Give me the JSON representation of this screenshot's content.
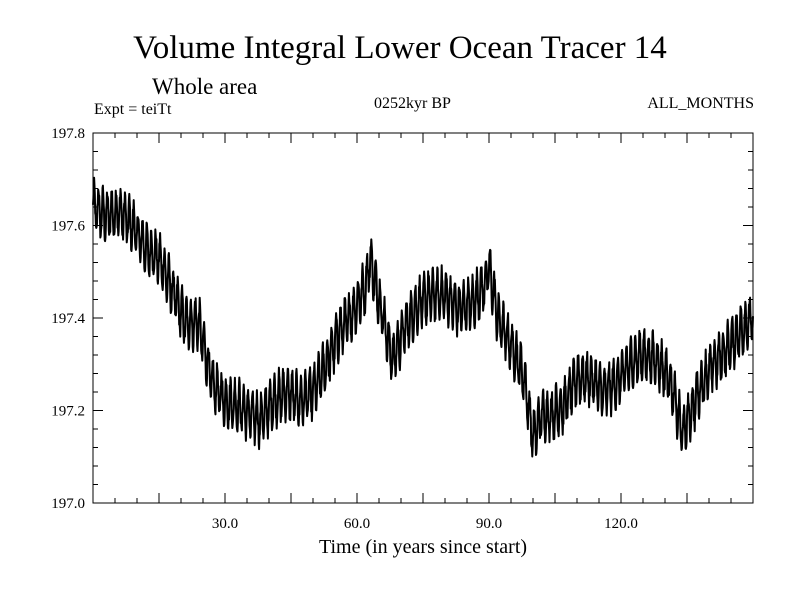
{
  "header": {
    "title": "Volume Integral Lower Ocean Tracer 14",
    "subtitle": "Whole area",
    "expt_label": "Expt = teiTt",
    "center_label": "0252kyr BP",
    "months_label": "ALL_MONTHS"
  },
  "chart_data": {
    "type": "line",
    "title": "Volume Integral Lower Ocean Tracer 14",
    "xlabel": "Time (in years since start)",
    "ylabel": "",
    "xlim": [
      0,
      150
    ],
    "ylim": [
      197.0,
      197.8
    ],
    "x_ticks": [
      30,
      60,
      90,
      120
    ],
    "x_tick_labels": [
      "30.0",
      "60.0",
      "90.0",
      "120.0"
    ],
    "y_ticks": [
      197.0,
      197.2,
      197.4,
      197.6,
      197.8
    ],
    "y_tick_labels": [
      "197.0",
      "197.2",
      "197.4",
      "197.6",
      "197.8"
    ],
    "grid": false,
    "series": [
      {
        "name": "Volume Integral Lower Ocean Tracer 14",
        "seasonal_amplitude": 0.05,
        "x": [
          0,
          3,
          6,
          9,
          12,
          15,
          18,
          21,
          24,
          27,
          30,
          33,
          36,
          38,
          41,
          44,
          47,
          50,
          53,
          56,
          59,
          62,
          63,
          64,
          66,
          68,
          71,
          74,
          77,
          80,
          83,
          86,
          89,
          90,
          92,
          96,
          98,
          100,
          102,
          104,
          107,
          110,
          113,
          116,
          119,
          122,
          125,
          128,
          131,
          133,
          134,
          136,
          138,
          141,
          144,
          147,
          150
        ],
        "values": [
          197.64,
          197.62,
          197.63,
          197.6,
          197.55,
          197.53,
          197.46,
          197.39,
          197.39,
          197.26,
          197.22,
          197.21,
          197.19,
          197.18,
          197.22,
          197.24,
          197.22,
          197.24,
          197.3,
          197.37,
          197.41,
          197.47,
          197.53,
          197.48,
          197.4,
          197.31,
          197.38,
          197.43,
          197.45,
          197.45,
          197.42,
          197.43,
          197.47,
          197.51,
          197.4,
          197.32,
          197.27,
          197.14,
          197.19,
          197.19,
          197.21,
          197.27,
          197.27,
          197.24,
          197.26,
          197.3,
          197.32,
          197.31,
          197.27,
          197.19,
          197.15,
          197.2,
          197.25,
          197.3,
          197.33,
          197.37,
          197.4
        ]
      }
    ]
  }
}
